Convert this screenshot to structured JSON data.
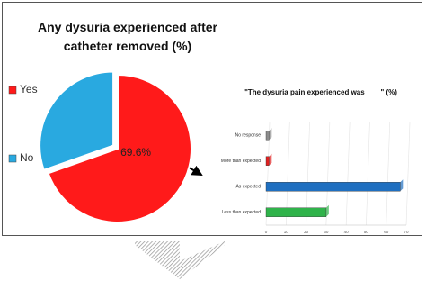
{
  "chart_data": [
    {
      "type": "pie",
      "title": "Any dysuria experienced after catheter removed (%)",
      "categories": [
        "Yes",
        "No"
      ],
      "values": [
        69.6,
        30.4
      ],
      "value_labels": [
        "69.6%",
        null
      ],
      "colors": [
        "#ff1a1a",
        "#29a9e0"
      ],
      "legend": "left"
    },
    {
      "type": "bar",
      "orientation": "horizontal",
      "title": "\"The dysuria pain experienced was ___ \" (%)",
      "categories": [
        "No response",
        "More than expected",
        "As expected",
        "Less than expected"
      ],
      "values": [
        1.5,
        1.5,
        67,
        30
      ],
      "colors": [
        "#8c8c8c",
        "#e02020",
        "#1f6fc0",
        "#2fb34a"
      ],
      "xlim": [
        0,
        70
      ],
      "xticks": [
        0,
        10,
        20,
        30,
        40,
        50,
        60,
        70
      ],
      "grid": true
    }
  ]
}
